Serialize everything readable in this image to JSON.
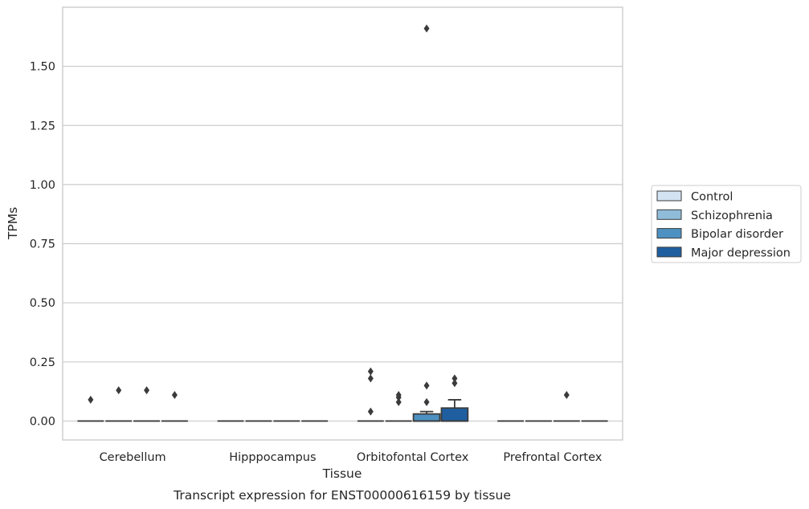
{
  "chart_data": {
    "type": "box",
    "title": "",
    "caption": "Transcript expression for ENST00000616159 by tissue",
    "xlabel": "Tissue",
    "ylabel": "TPMs",
    "ylim": [
      -0.08,
      1.75
    ],
    "yticks": [
      0.0,
      0.25,
      0.5,
      0.75,
      1.0,
      1.25,
      1.5
    ],
    "ytick_labels": [
      "0.00",
      "0.25",
      "0.50",
      "0.75",
      "1.00",
      "1.25",
      "1.50"
    ],
    "grid": true,
    "legend_position": "right",
    "categories": [
      "Cerebellum",
      "Hipppocampus",
      "Orbitofontal Cortex",
      "Prefrontal Cortex"
    ],
    "series": [
      {
        "name": "Control",
        "color": "#d4e3f1",
        "boxes": [
          {
            "q1": 0,
            "median": 0,
            "q3": 0,
            "whisker_low": 0,
            "whisker_high": 0,
            "outliers": [
              0.09
            ]
          },
          {
            "q1": 0,
            "median": 0,
            "q3": 0,
            "whisker_low": 0,
            "whisker_high": 0,
            "outliers": []
          },
          {
            "q1": 0,
            "median": 0,
            "q3": 0,
            "whisker_low": 0,
            "whisker_high": 0,
            "outliers": [
              0.04,
              0.18,
              0.21
            ]
          },
          {
            "q1": 0,
            "median": 0,
            "q3": 0,
            "whisker_low": 0,
            "whisker_high": 0,
            "outliers": []
          }
        ]
      },
      {
        "name": "Schizophrenia",
        "color": "#8fbcd9",
        "boxes": [
          {
            "q1": 0,
            "median": 0,
            "q3": 0,
            "whisker_low": 0,
            "whisker_high": 0,
            "outliers": [
              0.13
            ]
          },
          {
            "q1": 0,
            "median": 0,
            "q3": 0,
            "whisker_low": 0,
            "whisker_high": 0,
            "outliers": []
          },
          {
            "q1": 0,
            "median": 0,
            "q3": 0,
            "whisker_low": 0,
            "whisker_high": 0,
            "outliers": [
              0.08,
              0.1,
              0.11
            ]
          },
          {
            "q1": 0,
            "median": 0,
            "q3": 0,
            "whisker_low": 0,
            "whisker_high": 0,
            "outliers": []
          }
        ]
      },
      {
        "name": "Bipolar disorder",
        "color": "#4d91c2",
        "boxes": [
          {
            "q1": 0,
            "median": 0,
            "q3": 0,
            "whisker_low": 0,
            "whisker_high": 0,
            "outliers": [
              0.13
            ]
          },
          {
            "q1": 0,
            "median": 0,
            "q3": 0,
            "whisker_low": 0,
            "whisker_high": 0,
            "outliers": []
          },
          {
            "q1": 0,
            "median": 0,
            "q3": 0.03,
            "whisker_low": 0,
            "whisker_high": 0.04,
            "outliers": [
              0.08,
              0.15,
              1.66
            ]
          },
          {
            "q1": 0,
            "median": 0,
            "q3": 0,
            "whisker_low": 0,
            "whisker_high": 0,
            "outliers": [
              0.11
            ]
          }
        ]
      },
      {
        "name": "Major depression",
        "color": "#1f5fa0",
        "boxes": [
          {
            "q1": 0,
            "median": 0,
            "q3": 0,
            "whisker_low": 0,
            "whisker_high": 0,
            "outliers": [
              0.11
            ]
          },
          {
            "q1": 0,
            "median": 0,
            "q3": 0,
            "whisker_low": 0,
            "whisker_high": 0,
            "outliers": []
          },
          {
            "q1": 0,
            "median": 0,
            "q3": 0.055,
            "whisker_low": 0,
            "whisker_high": 0.09,
            "outliers": [
              0.16,
              0.18
            ]
          },
          {
            "q1": 0,
            "median": 0,
            "q3": 0,
            "whisker_low": 0,
            "whisker_high": 0,
            "outliers": []
          }
        ]
      }
    ],
    "colors": {
      "grid": "#cccccc",
      "frame": "#cccccc",
      "box_edge": "#3b3b3b",
      "outlier": "#3b3b3b"
    }
  }
}
